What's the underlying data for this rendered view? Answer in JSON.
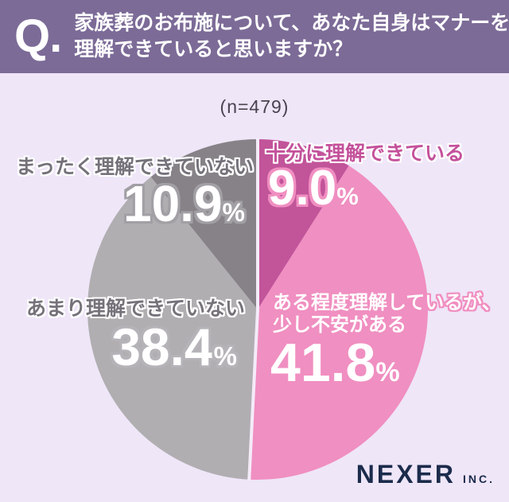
{
  "header": {
    "q_label": "Q.",
    "title_line1": "家族葬のお布施について、あなた自身はマナーを",
    "title_line2": "理解できていると思いますか？"
  },
  "survey": {
    "sample_size": "(n=479)"
  },
  "chart_data": {
    "type": "pie",
    "title": "家族葬のお布施について、あなた自身はマナーを理解できていると思いますか？",
    "sample_size": 479,
    "unit": "%",
    "direction": "clockwise",
    "start_angle_deg": 0,
    "slices": [
      {
        "label": "十分に理解できている",
        "value": 9.0,
        "color": "#C2549A"
      },
      {
        "label": "ある程度理解しているが、少し不安がある",
        "value": 41.8,
        "color": "#F08FC1"
      },
      {
        "label": "あまり理解できていない",
        "value": 38.4,
        "color": "#B0AEB1"
      },
      {
        "label": "まったく理解できていない",
        "value": 10.9,
        "color": "#868287"
      }
    ],
    "separators_cumulative_pct": [
      0,
      50.8
    ],
    "separator_color": "#F4EBF9",
    "legend_position": "callouts-on-chart",
    "grid": false
  },
  "callouts": {
    "fully": {
      "label": "十分に理解できている",
      "value": "9.0",
      "unit": "%"
    },
    "somewhat": {
      "label_line1": "ある程度理解しているが、",
      "label_line2": "少し不安がある",
      "value": "41.8",
      "unit": "%"
    },
    "not_really": {
      "label": "あまり理解できていない",
      "value": "38.4",
      "unit": "%"
    },
    "not_at_all": {
      "label": "まったく理解できていない",
      "value": "10.9",
      "unit": "%"
    }
  },
  "footer": {
    "brand": "NEXER",
    "brand_suffix": "INC."
  },
  "colors": {
    "header_bg": "#7C6B97",
    "page_bg": "#EFE6F8",
    "label_magenta": "#C4519B",
    "label_gray": "#75727A",
    "brand_navy": "#1B2B4B"
  }
}
